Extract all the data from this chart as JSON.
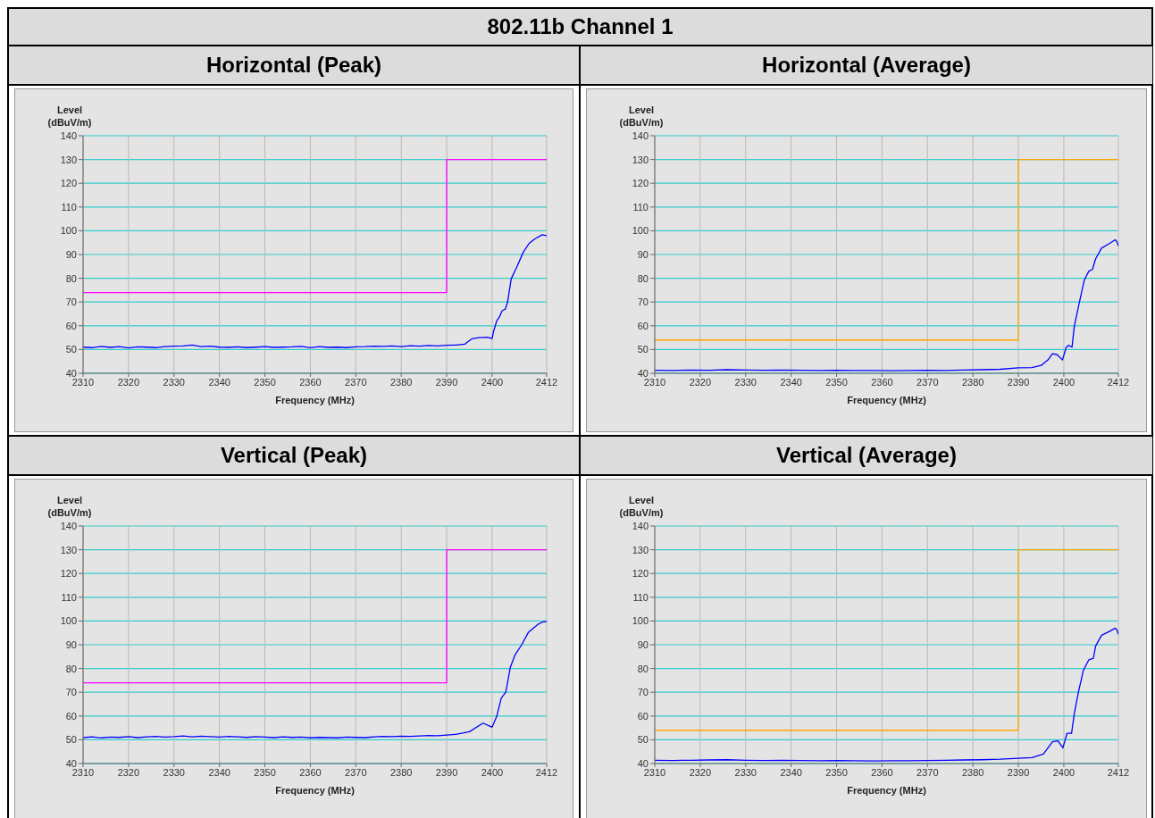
{
  "chart_data": [
    {
      "type": "line",
      "title": "Horizontal (Peak)",
      "annotations": [
        "802.11b Channel 1"
      ],
      "xlabel": "Frequency (MHz)",
      "ylabel": "Level (dBuV/m)",
      "xlim": [
        2310,
        2412
      ],
      "xticks": [
        2310,
        2320,
        2330,
        2340,
        2350,
        2360,
        2370,
        2380,
        2390,
        2400,
        2412
      ],
      "ylim": [
        40,
        140
      ],
      "yticks": [
        40,
        50,
        60,
        70,
        80,
        90,
        100,
        110,
        120,
        130,
        140
      ],
      "grid": true,
      "series": [
        {
          "color": "#0000ff",
          "x": [
            2310,
            2312,
            2314,
            2316,
            2318,
            2320,
            2322,
            2324,
            2326,
            2328,
            2330,
            2332,
            2334,
            2336,
            2338,
            2340,
            2342,
            2344,
            2346,
            2348,
            2350,
            2352,
            2354,
            2356,
            2358,
            2360,
            2362,
            2364,
            2366,
            2368,
            2370,
            2372,
            2374,
            2376,
            2378,
            2380,
            2382,
            2384,
            2386,
            2388,
            2390,
            2392,
            2394,
            2395.5,
            2397,
            2399,
            2400,
            2400.3,
            2401,
            2401.6,
            2402.2,
            2402.9,
            2403.4,
            2404.2,
            2405.5,
            2406.8,
            2408.1,
            2409.4,
            2411,
            2412
          ],
          "values": [
            51,
            50.8,
            51.3,
            50.9,
            51.2,
            50.7,
            51.1,
            51,
            50.8,
            51.2,
            51.4,
            51.5,
            51.9,
            51.2,
            51.4,
            51,
            50.9,
            51.1,
            50.8,
            51,
            51.2,
            50.9,
            51,
            51.1,
            51.3,
            50.8,
            51.2,
            50.9,
            51,
            50.8,
            51.1,
            51.2,
            51.4,
            51.3,
            51.5,
            51.2,
            51.6,
            51.4,
            51.7,
            51.5,
            51.8,
            51.9,
            52.3,
            54.5,
            55,
            55.2,
            54.6,
            57.5,
            62,
            63.7,
            66.3,
            67,
            70,
            79.8,
            85,
            90.8,
            94.6,
            96.6,
            98.3,
            97.9
          ]
        },
        {
          "type": "step",
          "color": "#ff00ff",
          "x": [
            2310,
            2390,
            2412
          ],
          "values": [
            74,
            130,
            130
          ]
        }
      ]
    },
    {
      "type": "line",
      "title": "Horizontal (Average)",
      "xlabel": "Frequency (MHz)",
      "ylabel": "Level (dBuV/m)",
      "xlim": [
        2310,
        2412
      ],
      "xticks": [
        2310,
        2320,
        2330,
        2340,
        2350,
        2360,
        2370,
        2380,
        2390,
        2400,
        2412
      ],
      "ylim": [
        40,
        140
      ],
      "yticks": [
        40,
        50,
        60,
        70,
        80,
        90,
        100,
        110,
        120,
        130,
        140
      ],
      "grid": true,
      "series": [
        {
          "color": "#0000ff",
          "x": [
            2310,
            2314,
            2318,
            2322,
            2326,
            2330,
            2334,
            2338,
            2342,
            2346,
            2350,
            2354,
            2358,
            2362,
            2366,
            2370,
            2374,
            2378,
            2382,
            2386,
            2390,
            2393,
            2395,
            2396.5,
            2397.5,
            2398.5,
            2399.7,
            2400.5,
            2401,
            2401.8,
            2402.3,
            2403.3,
            2404.5,
            2405.5,
            2406.3,
            2407,
            2408.3,
            2410,
            2411.3,
            2411.7,
            2412
          ],
          "values": [
            41.3,
            41.2,
            41.4,
            41.3,
            41.5,
            41.4,
            41.3,
            41.4,
            41.3,
            41.2,
            41.3,
            41.2,
            41.2,
            41.1,
            41.2,
            41.3,
            41.2,
            41.4,
            41.5,
            41.7,
            42.3,
            42.4,
            43.3,
            45.6,
            48.2,
            47.9,
            45.6,
            50.8,
            51.8,
            51,
            59.8,
            68.8,
            79.2,
            83,
            83.7,
            88.2,
            92.7,
            94.6,
            96.2,
            95.3,
            93.6
          ]
        },
        {
          "type": "step",
          "color": "#ffa500",
          "x": [
            2310,
            2390,
            2412
          ],
          "values": [
            54,
            130,
            130
          ]
        }
      ]
    },
    {
      "type": "line",
      "title": "Vertical (Peak)",
      "xlabel": "Frequency (MHz)",
      "ylabel": "Level (dBuV/m)",
      "xlim": [
        2310,
        2412
      ],
      "xticks": [
        2310,
        2320,
        2330,
        2340,
        2350,
        2360,
        2370,
        2380,
        2390,
        2400,
        2412
      ],
      "ylim": [
        40,
        140
      ],
      "yticks": [
        40,
        50,
        60,
        70,
        80,
        90,
        100,
        110,
        120,
        130,
        140
      ],
      "grid": true,
      "series": [
        {
          "color": "#0000ff",
          "x": [
            2310,
            2312,
            2314,
            2316,
            2318,
            2320,
            2322,
            2324,
            2326,
            2328,
            2330,
            2332,
            2334,
            2336,
            2338,
            2340,
            2342,
            2344,
            2346,
            2348,
            2350,
            2352,
            2354,
            2356,
            2358,
            2360,
            2362,
            2364,
            2366,
            2368,
            2370,
            2372,
            2374,
            2376,
            2378,
            2380,
            2382,
            2384,
            2386,
            2388,
            2390,
            2392,
            2395,
            2398,
            2400,
            2401,
            2402,
            2403,
            2404,
            2405,
            2406.5,
            2408,
            2410,
            2411,
            2412
          ],
          "values": [
            50.9,
            51.2,
            50.8,
            51.1,
            51,
            51.3,
            50.9,
            51.2,
            51.4,
            51.1,
            51.3,
            51.6,
            51.2,
            51.5,
            51.3,
            51.1,
            51.4,
            51.2,
            51,
            51.3,
            51.1,
            50.9,
            51.2,
            51,
            51.1,
            50.8,
            51,
            50.9,
            50.8,
            51.1,
            51,
            50.9,
            51.2,
            51.4,
            51.3,
            51.5,
            51.4,
            51.6,
            51.8,
            51.7,
            52,
            52.3,
            53.4,
            57,
            55.3,
            59.8,
            67.5,
            70,
            80.5,
            85.6,
            90,
            95.3,
            98.5,
            99.5,
            99.8
          ]
        },
        {
          "type": "step",
          "color": "#ff00ff",
          "x": [
            2310,
            2390,
            2412
          ],
          "values": [
            74,
            130,
            130
          ]
        }
      ]
    },
    {
      "type": "line",
      "title": "Vertical (Average)",
      "xlabel": "Frequency (MHz)",
      "ylabel": "Level (dBuV/m)",
      "xlim": [
        2310,
        2412
      ],
      "xticks": [
        2310,
        2320,
        2330,
        2340,
        2350,
        2360,
        2370,
        2380,
        2390,
        2400,
        2412
      ],
      "ylim": [
        40,
        140
      ],
      "yticks": [
        40,
        50,
        60,
        70,
        80,
        90,
        100,
        110,
        120,
        130,
        140
      ],
      "grid": true,
      "series": [
        {
          "color": "#0000ff",
          "x": [
            2310,
            2314,
            2318,
            2322,
            2326,
            2330,
            2334,
            2338,
            2342,
            2346,
            2350,
            2354,
            2358,
            2362,
            2366,
            2370,
            2374,
            2378,
            2382,
            2386,
            2390,
            2393,
            2395.5,
            2397.5,
            2398.7,
            2399.8,
            2400.7,
            2401.7,
            2402.3,
            2403.2,
            2404.3,
            2405.5,
            2406.5,
            2407,
            2408.3,
            2410,
            2411.3,
            2411.7,
            2412
          ],
          "values": [
            41.4,
            41.3,
            41.4,
            41.5,
            41.6,
            41.4,
            41.3,
            41.4,
            41.3,
            41.2,
            41.3,
            41.2,
            41.1,
            41.2,
            41.2,
            41.3,
            41.4,
            41.5,
            41.6,
            41.8,
            42.2,
            42.5,
            44,
            49.2,
            49.5,
            46.6,
            52.7,
            52.7,
            61,
            70,
            79.2,
            83.7,
            84.3,
            89.5,
            94,
            95.6,
            97,
            96.2,
            94.4
          ]
        },
        {
          "type": "step",
          "color": "#ffa500",
          "x": [
            2310,
            2390,
            2412
          ],
          "values": [
            54,
            130,
            130
          ]
        }
      ]
    }
  ]
}
